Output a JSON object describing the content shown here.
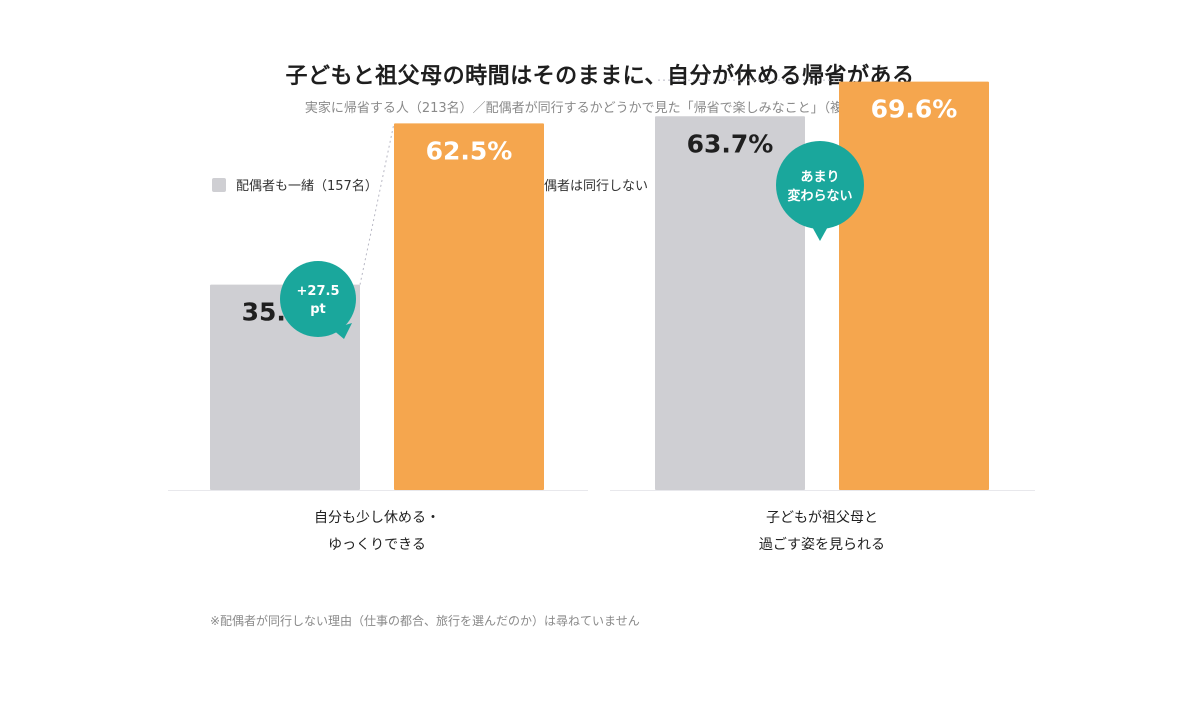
{
  "header": {
    "title": "子どもと祖父母の時間はそのままに、自分が休める帰省がある",
    "subtitle": "実家に帰省する人（213名）／配偶者が同行するかどうかで見た「帰省で楽しみなこと」（複数回答）"
  },
  "colors": {
    "series_with_spouse": "#cfcfd3",
    "series_without_spouse": "#f5a64e",
    "bubble": "#1aa79c",
    "baseline": "#e8e8ec"
  },
  "chart_data": {
    "type": "bar",
    "categories": [
      [
        "自分も少し休める・",
        "ゆっくりできる"
      ],
      [
        "子どもが祖父母と",
        "過ごす姿を見られる"
      ]
    ],
    "series": [
      {
        "name": "配偶者も一緒（157名）",
        "values": [
          35.0,
          63.7
        ]
      },
      {
        "name": "母子帰省・配偶者は同行しない（56名）",
        "values": [
          62.5,
          69.6
        ]
      }
    ],
    "value_labels": [
      [
        "35.0%",
        "63.7%"
      ],
      [
        "62.5%",
        "69.6%"
      ]
    ],
    "unit": "%",
    "ylim": [
      0,
      75
    ],
    "annotations": [
      {
        "group": 0,
        "lines": [
          "+27.5",
          "pt"
        ]
      },
      {
        "group": 1,
        "lines": [
          "あまり",
          "変わらない"
        ]
      }
    ],
    "grid": false,
    "legend_position": "top-left"
  },
  "footnote": "※配偶者が同行しない理由（仕事の都合、旅行を選んだのか）は尋ねていません"
}
